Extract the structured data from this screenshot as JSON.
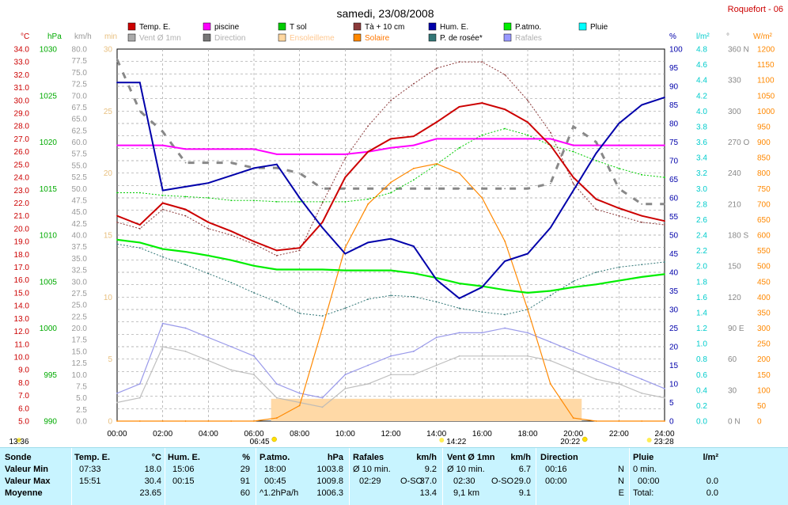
{
  "header": {
    "title": "samedi, 23/08/2008",
    "station": "Roquefort - 06"
  },
  "legend": [
    {
      "label": "Temp. E.",
      "color": "#cc0000",
      "active": true
    },
    {
      "label": "piscine",
      "color": "#ff00ff",
      "active": true
    },
    {
      "label": "T sol",
      "color": "#00cc00",
      "active": true
    },
    {
      "label": "Tà + 10 cm",
      "color": "#8b3a3a",
      "active": true
    },
    {
      "label": "Hum. E.",
      "color": "#0000aa",
      "active": true
    },
    {
      "label": "P.atmo.",
      "color": "#00ee00",
      "active": true
    },
    {
      "label": "Pluie",
      "color": "#00ffff",
      "active": true
    },
    {
      "label": "Vent Ø 1mn",
      "color": "#aaaaaa",
      "active": false
    },
    {
      "label": "Direction",
      "color": "#777777",
      "active": false
    },
    {
      "label": "Ensoleilleme",
      "color": "#ffd7a0",
      "active": false
    },
    {
      "label": "Solaire",
      "color": "#ff8800",
      "active": true
    },
    {
      "label": "P. de rosée*",
      "color": "#337777",
      "active": true
    },
    {
      "label": "Rafales",
      "color": "#9999ff",
      "active": false
    }
  ],
  "axes": {
    "temp": {
      "unit": "°C",
      "ticks": [
        "34.0",
        "33.0",
        "32.0",
        "31.0",
        "30.0",
        "29.0",
        "28.0",
        "27.0",
        "26.0",
        "25.0",
        "24.0",
        "23.0",
        "22.0",
        "21.0",
        "20.0",
        "19.0",
        "18.0",
        "17.0",
        "16.0",
        "15.0",
        "14.0",
        "13.0",
        "12.0",
        "11.0",
        "10.0",
        "9.0",
        "8.0",
        "7.0",
        "6.0",
        "5.0"
      ]
    },
    "pressure": {
      "unit": "hPa",
      "ticks": [
        "1030",
        "1025",
        "1020",
        "1015",
        "1010",
        "1005",
        "1000",
        "995",
        "990"
      ]
    },
    "wind": {
      "unit": "km/h",
      "ticks": [
        "80.0",
        "77.5",
        "75.0",
        "72.5",
        "70.0",
        "67.5",
        "65.0",
        "62.5",
        "60.0",
        "57.5",
        "55.0",
        "52.5",
        "50.0",
        "47.5",
        "45.0",
        "42.5",
        "40.0",
        "37.5",
        "35.0",
        "32.5",
        "30.0",
        "27.5",
        "25.0",
        "22.5",
        "20.0",
        "17.5",
        "15.0",
        "12.5",
        "10.0",
        "7.5",
        "5.0",
        "2.5",
        "0.0"
      ]
    },
    "minutes": {
      "unit": "min",
      "ticks": [
        "30",
        "25",
        "20",
        "15",
        "10",
        "5",
        "0"
      ]
    },
    "humidity": {
      "unit": "%",
      "ticks": [
        "100",
        "95",
        "90",
        "85",
        "80",
        "75",
        "70",
        "65",
        "60",
        "55",
        "50",
        "45",
        "40",
        "35",
        "30",
        "25",
        "20",
        "15",
        "10",
        "5",
        "0"
      ]
    },
    "rain": {
      "unit": "l/m²",
      "ticks": [
        "4.8",
        "4.6",
        "4.4",
        "4.2",
        "4.0",
        "3.8",
        "3.6",
        "3.4",
        "3.2",
        "3.0",
        "2.8",
        "2.6",
        "2.4",
        "2.2",
        "2.0",
        "1.8",
        "1.6",
        "1.4",
        "1.2",
        "1.0",
        "0.8",
        "0.6",
        "0.4",
        "0.2",
        "0.0"
      ]
    },
    "direction": {
      "unit": "°",
      "ticks": [
        "360 N",
        "330",
        "300",
        "270 O",
        "240",
        "210",
        "180 S",
        "150",
        "120",
        "90 E",
        "60",
        "30",
        "0 N"
      ]
    },
    "radiation": {
      "unit": "W/m²",
      "ticks": [
        "1200",
        "1150",
        "1100",
        "1050",
        "1000",
        "950",
        "900",
        "850",
        "800",
        "750",
        "700",
        "650",
        "600",
        "550",
        "500",
        "450",
        "400",
        "350",
        "300",
        "250",
        "200",
        "150",
        "100",
        "50",
        "0"
      ]
    },
    "time": {
      "ticks": [
        "00:00",
        "02:00",
        "04:00",
        "06:00",
        "08:00",
        "10:00",
        "12:00",
        "14:00",
        "16:00",
        "18:00",
        "20:00",
        "22:00",
        "24:00"
      ]
    }
  },
  "markers": {
    "moonrise": "13:36",
    "sunrise": "06:45",
    "moon_transit": "14:22",
    "sunset": "20:22",
    "moonset": "23:28"
  },
  "chart_data": {
    "type": "line",
    "title": "samedi, 23/08/2008",
    "x_unit": "heure",
    "x": [
      "00:00",
      "01:00",
      "02:00",
      "03:00",
      "04:00",
      "05:00",
      "06:00",
      "07:00",
      "08:00",
      "09:00",
      "10:00",
      "11:00",
      "12:00",
      "13:00",
      "14:00",
      "15:00",
      "16:00",
      "17:00",
      "18:00",
      "19:00",
      "20:00",
      "21:00",
      "22:00",
      "23:00",
      "24:00"
    ],
    "series": [
      {
        "name": "Temp. E.",
        "axis": "temp",
        "values": [
          21.0,
          20.3,
          22.0,
          21.5,
          20.5,
          19.8,
          19.0,
          18.3,
          18.5,
          20.5,
          24.0,
          26.0,
          27.0,
          27.2,
          28.3,
          29.5,
          29.8,
          29.3,
          28.3,
          26.5,
          24.0,
          22.3,
          21.6,
          21.0,
          20.6
        ]
      },
      {
        "name": "piscine",
        "axis": "temp",
        "values": [
          26.5,
          26.5,
          26.5,
          26.2,
          26.2,
          26.2,
          26.2,
          25.8,
          25.8,
          25.8,
          25.8,
          26.0,
          26.3,
          26.5,
          27.0,
          27.0,
          27.0,
          27.0,
          27.0,
          27.0,
          26.5,
          26.5,
          26.5,
          26.5,
          26.5
        ]
      },
      {
        "name": "Hum. E.",
        "axis": "humidity",
        "values": [
          91,
          91,
          62,
          63,
          64,
          66,
          68,
          69,
          60,
          52,
          45,
          48,
          49,
          47,
          38,
          33,
          36,
          43,
          45,
          52,
          62,
          72,
          80,
          85,
          87
        ]
      },
      {
        "name": "P.atmo.",
        "axis": "pressure",
        "values": [
          1009.5,
          1009.2,
          1008.5,
          1008.2,
          1007.8,
          1007.3,
          1006.7,
          1006.3,
          1006.3,
          1006.3,
          1006.2,
          1006.2,
          1006.2,
          1005.9,
          1005.4,
          1004.8,
          1004.5,
          1004.1,
          1003.8,
          1004.0,
          1004.4,
          1004.7,
          1005.1,
          1005.5,
          1005.8
        ]
      },
      {
        "name": "Solaire",
        "axis": "radiation",
        "values": [
          0,
          0,
          0,
          0,
          0,
          0,
          0,
          10,
          50,
          300,
          560,
          700,
          770,
          815,
          830,
          800,
          720,
          580,
          360,
          120,
          10,
          0,
          0,
          0,
          0
        ]
      },
      {
        "name": "P. de rosée*",
        "axis": "temp",
        "values": [
          18.8,
          18.5,
          17.8,
          17.2,
          16.5,
          15.8,
          15.0,
          14.3,
          13.4,
          13.2,
          13.8,
          14.5,
          14.8,
          14.7,
          14.3,
          13.8,
          13.5,
          13.3,
          13.7,
          14.8,
          15.9,
          16.6,
          17.0,
          17.2,
          17.4
        ]
      },
      {
        "name": "Tà + 10 cm",
        "axis": "temp",
        "values": [
          20.5,
          20.0,
          21.5,
          21.0,
          20.0,
          19.5,
          18.8,
          17.9,
          18.3,
          22.0,
          25.5,
          28.0,
          30.0,
          31.3,
          32.5,
          33.0,
          33.0,
          32.0,
          30.0,
          27.5,
          23.5,
          21.5,
          21.0,
          20.5,
          20.3
        ]
      },
      {
        "name": "T sol",
        "axis": "temp",
        "values": [
          22.8,
          22.8,
          22.6,
          22.5,
          22.4,
          22.2,
          22.2,
          22.1,
          22.1,
          22.1,
          22.1,
          22.3,
          22.8,
          23.8,
          25.0,
          26.3,
          27.3,
          27.8,
          27.3,
          26.5,
          26.0,
          25.3,
          24.7,
          24.2,
          24.0
        ]
      },
      {
        "name": "Vent Ø 1mn",
        "axis": "wind",
        "values": [
          4,
          5,
          16,
          15,
          13,
          11,
          10,
          5,
          4,
          3,
          7,
          8,
          10,
          10,
          12,
          14,
          14,
          14,
          14,
          13,
          11,
          9,
          8,
          6,
          5
        ]
      },
      {
        "name": "Rafales",
        "axis": "wind",
        "values": [
          6,
          8,
          21,
          20,
          18,
          16,
          14,
          8,
          6,
          5,
          10,
          12,
          14,
          15,
          18,
          19,
          19,
          20,
          19,
          17,
          15,
          13,
          11,
          9,
          7
        ]
      },
      {
        "name": "Direction",
        "axis": "direction",
        "values": [
          350,
          300,
          280,
          250,
          250,
          250,
          245,
          245,
          240,
          225,
          225,
          225,
          225,
          225,
          225,
          225,
          225,
          225,
          225,
          230,
          285,
          270,
          225,
          210,
          210
        ]
      }
    ],
    "ensoleillement": {
      "start": "06:45",
      "end": "20:22"
    }
  },
  "stats": {
    "sonde": {
      "title": "Sonde",
      "rows": [
        "Valeur Min",
        "Valeur Max",
        "Moyenne"
      ]
    },
    "temp": {
      "title": "Temp. E.",
      "unit": "°C",
      "rows": [
        [
          "07:33",
          "18.0"
        ],
        [
          "15:51",
          "30.4"
        ],
        [
          "",
          "23.65"
        ]
      ]
    },
    "hum": {
      "title": "Hum. E.",
      "unit": "%",
      "rows": [
        [
          "15:06",
          "29"
        ],
        [
          "00:15",
          "91"
        ],
        [
          "",
          "60"
        ]
      ]
    },
    "patmo": {
      "title": "P.atmo.",
      "unit": "hPa",
      "rows": [
        [
          "18:00",
          "1003.8"
        ],
        [
          "00:45",
          "1009.8"
        ],
        [
          "^1.2hPa/h",
          "1006.3"
        ]
      ]
    },
    "rafales": {
      "title": "Rafales",
      "unit": "km/h",
      "rows": [
        [
          "Ø 10 min.",
          "",
          "9.2"
        ],
        [
          "02:29",
          "O-SO",
          "37.0"
        ],
        [
          "",
          "",
          "13.4"
        ]
      ]
    },
    "vent": {
      "title": "Vent Ø 1mn",
      "unit": "km/h",
      "rows": [
        [
          "Ø 10 min.",
          "",
          "6.7"
        ],
        [
          "02:30",
          "O-SO",
          "29.0"
        ],
        [
          "9,1 km",
          "",
          "9.1"
        ]
      ]
    },
    "direction": {
      "title": "Direction",
      "unit": "",
      "rows": [
        [
          "00:16",
          "N"
        ],
        [
          "00:00",
          "N"
        ],
        [
          "",
          "E"
        ]
      ]
    },
    "pluie": {
      "title": "Pluie",
      "unit": "l/m²",
      "rows": [
        [
          "0 min.",
          ""
        ],
        [
          "00:00",
          "0.0"
        ],
        [
          "Total:",
          "0.0"
        ]
      ]
    }
  }
}
